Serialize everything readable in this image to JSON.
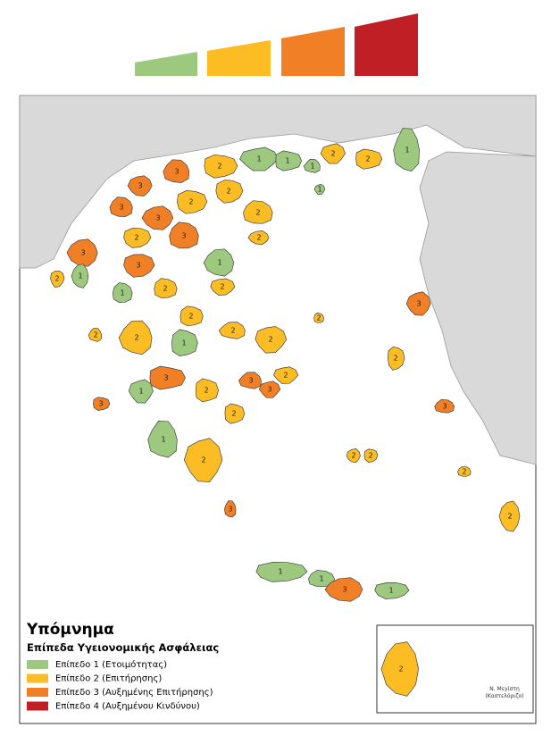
{
  "legend": {
    "title": "Υπόμνημα",
    "subtitle": "Επίπεδα Υγειονομικής Ασφάλειας",
    "levels": [
      {
        "label": "Επίπεδο 1 (Ετοιμότητας)",
        "color": "#9dc97f"
      },
      {
        "label": "Επίπεδο 2 (Επιτήρησης)",
        "color": "#fbbd23"
      },
      {
        "label": "Επίπεδο 3 (Αυξημένης Επιτήρησης)",
        "color": "#f07f26"
      },
      {
        "label": "Επίπεδο 4 (Αυξημένου Κινδύνου)",
        "color": "#c01f25"
      }
    ]
  },
  "map": {
    "regions": [
      {
        "level": 1
      },
      {
        "level": 1
      },
      {
        "level": 1
      },
      {
        "level": 2
      },
      {
        "level": 2
      },
      {
        "level": 1
      },
      {
        "level": 1
      },
      {
        "level": 2
      },
      {
        "level": 3
      },
      {
        "level": 3
      },
      {
        "level": 2
      },
      {
        "level": 3
      },
      {
        "level": 3
      },
      {
        "level": 2
      },
      {
        "level": 2
      },
      {
        "level": 2
      },
      {
        "level": 2
      },
      {
        "level": 3
      },
      {
        "level": 3
      },
      {
        "level": 3
      },
      {
        "level": 1
      },
      {
        "level": 1
      },
      {
        "level": 2
      },
      {
        "level": 2
      },
      {
        "level": 1
      },
      {
        "level": 2
      },
      {
        "level": 2
      },
      {
        "level": 2
      },
      {
        "level": 2
      },
      {
        "level": 1
      },
      {
        "level": 2
      },
      {
        "level": 2
      },
      {
        "level": 2
      },
      {
        "level": 3
      },
      {
        "level": 3
      },
      {
        "level": 3
      },
      {
        "level": 2
      },
      {
        "level": 1
      },
      {
        "level": 2
      },
      {
        "level": 1
      },
      {
        "level": 2
      },
      {
        "level": 3
      },
      {
        "level": 3
      },
      {
        "level": 3
      },
      {
        "level": 2
      },
      {
        "level": 3
      },
      {
        "level": 2
      },
      {
        "level": 2
      },
      {
        "level": 2
      },
      {
        "level": 2
      },
      {
        "level": 1
      },
      {
        "level": 1
      },
      {
        "level": 3
      },
      {
        "level": 1
      },
      {
        "level": 2
      },
      {
        "level": 2
      }
    ],
    "inset": {
      "label_lines": [
        "Ν. Μεγίστη",
        "(Καστελόριζο)"
      ]
    }
  }
}
